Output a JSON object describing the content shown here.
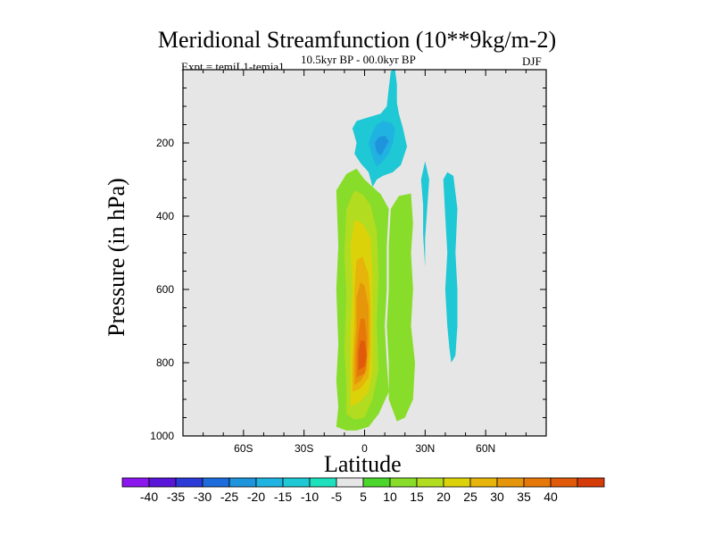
{
  "chart_data": {
    "type": "contour",
    "title": "Meridional Streamfunction (10**9kg/m-2)",
    "left_annotation": "Expt = temjL1-temja1",
    "center_annotation": "10.5kyr BP - 00.0kyr BP",
    "right_annotation": "DJF",
    "xlabel": "Latitude",
    "ylabel": "Pressure (in hPa)",
    "xlim": [
      -90,
      90
    ],
    "ylim": [
      1000,
      0
    ],
    "x_ticks": [
      {
        "value": -60,
        "label": "60S"
      },
      {
        "value": -30,
        "label": "30S"
      },
      {
        "value": 0,
        "label": "0"
      },
      {
        "value": 30,
        "label": "30N"
      },
      {
        "value": 60,
        "label": "60N"
      }
    ],
    "y_ticks": [
      {
        "value": 200,
        "label": "200"
      },
      {
        "value": 400,
        "label": "400"
      },
      {
        "value": 600,
        "label": "600"
      },
      {
        "value": 800,
        "label": "800"
      },
      {
        "value": 1000,
        "label": "1000"
      }
    ],
    "colorbar": {
      "labels": [
        "-40",
        "-35",
        "-30",
        "-25",
        "-20",
        "-15",
        "-10",
        "-5",
        "5",
        "10",
        "15",
        "20",
        "25",
        "30",
        "35",
        "40"
      ],
      "colors": [
        "#8c16ee",
        "#5a16d8",
        "#2c3ad8",
        "#1e6bdc",
        "#1e94dc",
        "#20b2e0",
        "#1ec8d4",
        "#1ee0bc",
        "#e6e6e6",
        "#4ad62a",
        "#88dc2a",
        "#b2dc20",
        "#dcd20a",
        "#e6b40a",
        "#e6960a",
        "#e6780a",
        "#e05a0a",
        "#d63c0a"
      ]
    },
    "regions": [
      {
        "level": 5,
        "color": "#88dc2a",
        "polygon": [
          [
            -14,
            975
          ],
          [
            -13,
            920
          ],
          [
            -14,
            850
          ],
          [
            -13,
            750
          ],
          [
            -14,
            600
          ],
          [
            -13,
            480
          ],
          [
            -14,
            330
          ],
          [
            -9,
            285
          ],
          [
            -4,
            270
          ],
          [
            0,
            300
          ],
          [
            4,
            320
          ],
          [
            8,
            340
          ],
          [
            12,
            380
          ],
          [
            11,
            480
          ],
          [
            11,
            600
          ],
          [
            10,
            700
          ],
          [
            11,
            800
          ],
          [
            12,
            880
          ],
          [
            7,
            940
          ],
          [
            2,
            975
          ],
          [
            -4,
            985
          ],
          [
            -9,
            985
          ]
        ]
      },
      {
        "level": 5,
        "color": "#88dc2a",
        "polygon": [
          [
            12,
            900
          ],
          [
            12,
            800
          ],
          [
            11,
            700
          ],
          [
            12,
            600
          ],
          [
            12,
            480
          ],
          [
            13,
            380
          ],
          [
            17,
            345
          ],
          [
            23,
            338
          ],
          [
            24,
            420
          ],
          [
            23,
            500
          ],
          [
            24,
            600
          ],
          [
            23,
            700
          ],
          [
            25,
            800
          ],
          [
            24,
            900
          ],
          [
            20,
            950
          ],
          [
            16,
            960
          ]
        ]
      },
      {
        "level": 10,
        "color": "#b2dc20",
        "polygon": [
          [
            -9,
            940
          ],
          [
            -9,
            860
          ],
          [
            -10,
            760
          ],
          [
            -9,
            620
          ],
          [
            -10,
            500
          ],
          [
            -9,
            380
          ],
          [
            -5,
            330
          ],
          [
            -1,
            340
          ],
          [
            3,
            370
          ],
          [
            6,
            440
          ],
          [
            7,
            560
          ],
          [
            6,
            700
          ],
          [
            7,
            820
          ],
          [
            4,
            900
          ],
          [
            0,
            950
          ],
          [
            -5,
            955
          ]
        ]
      },
      {
        "level": 15,
        "color": "#dcd20a",
        "polygon": [
          [
            -7,
            920
          ],
          [
            -7,
            840
          ],
          [
            -7,
            720
          ],
          [
            -6,
            600
          ],
          [
            -7,
            480
          ],
          [
            -5,
            410
          ],
          [
            -1,
            420
          ],
          [
            3,
            460
          ],
          [
            4,
            560
          ],
          [
            4,
            700
          ],
          [
            4,
            820
          ],
          [
            2,
            880
          ],
          [
            -2,
            905
          ]
        ]
      },
      {
        "level": 20,
        "color": "#e6b40a",
        "polygon": [
          [
            -6,
            880
          ],
          [
            -6,
            800
          ],
          [
            -5,
            700
          ],
          [
            -5,
            600
          ],
          [
            -4,
            520
          ],
          [
            -1,
            510
          ],
          [
            2,
            560
          ],
          [
            3,
            650
          ],
          [
            3,
            760
          ],
          [
            2,
            840
          ],
          [
            -2,
            870
          ]
        ]
      },
      {
        "level": 25,
        "color": "#e6960a",
        "polygon": [
          [
            -5,
            860
          ],
          [
            -5,
            780
          ],
          [
            -4,
            700
          ],
          [
            -4,
            620
          ],
          [
            -2,
            580
          ],
          [
            0,
            590
          ],
          [
            2,
            650
          ],
          [
            2,
            740
          ],
          [
            1,
            820
          ],
          [
            -2,
            850
          ]
        ]
      },
      {
        "level": 30,
        "color": "#e6780a",
        "polygon": [
          [
            -4,
            840
          ],
          [
            -4,
            780
          ],
          [
            -3,
            720
          ],
          [
            -2,
            680
          ],
          [
            0,
            680
          ],
          [
            1,
            730
          ],
          [
            1,
            800
          ],
          [
            0,
            830
          ]
        ]
      },
      {
        "level": 35,
        "color": "#e05a0a",
        "polygon": [
          [
            -3,
            820
          ],
          [
            -3,
            770
          ],
          [
            -2,
            740
          ],
          [
            0,
            740
          ],
          [
            1,
            780
          ],
          [
            0,
            810
          ]
        ]
      },
      {
        "level": -5,
        "color": "#1ec8d4",
        "polygon": [
          [
            -6,
            160
          ],
          [
            -4,
            140
          ],
          [
            2,
            130
          ],
          [
            8,
            120
          ],
          [
            11,
            100
          ],
          [
            12,
            50
          ],
          [
            13,
            5
          ],
          [
            15,
            -5
          ],
          [
            16,
            40
          ],
          [
            16,
            90
          ],
          [
            17,
            120
          ],
          [
            19,
            160
          ],
          [
            21,
            210
          ],
          [
            18,
            260
          ],
          [
            14,
            280
          ],
          [
            9,
            290
          ],
          [
            6,
            300
          ],
          [
            4,
            320
          ],
          [
            2,
            280
          ],
          [
            -2,
            255
          ],
          [
            -5,
            230
          ],
          [
            -4,
            200
          ]
        ]
      },
      {
        "level": -10,
        "color": "#20b2e0",
        "polygon": [
          [
            2,
            200
          ],
          [
            4,
            170
          ],
          [
            6,
            150
          ],
          [
            9,
            140
          ],
          [
            13,
            145
          ],
          [
            15,
            160
          ],
          [
            14,
            200
          ],
          [
            12,
            230
          ],
          [
            9,
            250
          ],
          [
            6,
            265
          ],
          [
            4,
            240
          ]
        ]
      },
      {
        "level": -15,
        "color": "#1e94dc",
        "polygon": [
          [
            5,
            200
          ],
          [
            7,
            185
          ],
          [
            10,
            180
          ],
          [
            12,
            195
          ],
          [
            10,
            215
          ],
          [
            8,
            235
          ],
          [
            6,
            225
          ]
        ]
      },
      {
        "level": -5,
        "color": "#1ec8d4",
        "polygon": [
          [
            29,
            370
          ],
          [
            28,
            300
          ],
          [
            30,
            250
          ],
          [
            32,
            300
          ],
          [
            31,
            380
          ],
          [
            30,
            460
          ],
          [
            30,
            540
          ],
          [
            29,
            450
          ]
        ]
      },
      {
        "level": -5,
        "color": "#1ec8d4",
        "polygon": [
          [
            39,
            300
          ],
          [
            41,
            280
          ],
          [
            44,
            290
          ],
          [
            46,
            380
          ],
          [
            45,
            500
          ],
          [
            46,
            600
          ],
          [
            46,
            700
          ],
          [
            45,
            780
          ],
          [
            43,
            800
          ],
          [
            42,
            760
          ],
          [
            41,
            700
          ],
          [
            40,
            600
          ],
          [
            41,
            500
          ],
          [
            40,
            400
          ]
        ]
      }
    ]
  }
}
